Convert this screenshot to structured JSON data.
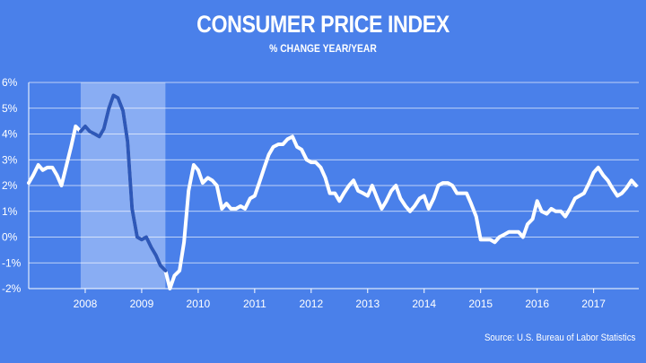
{
  "colors": {
    "background": "#4a80ea",
    "line": "#ffffff",
    "line_in_recession": "#2e58b8",
    "recession_band": "#9fbcf6",
    "grid": "#ffffff"
  },
  "chart_data": {
    "type": "line",
    "title": "CONSUMER PRICE INDEX",
    "subtitle": "% CHANGE YEAR/YEAR",
    "source": "Source: U.S. Bureau of Labor Statistics",
    "xlabel": "",
    "ylabel": "",
    "xlim": [
      2007.0,
      2017.8
    ],
    "ylim": [
      -2,
      6
    ],
    "y_ticks": [
      {
        "value": 6,
        "label": "6%"
      },
      {
        "value": 5,
        "label": "5%"
      },
      {
        "value": 4,
        "label": "4%"
      },
      {
        "value": 3,
        "label": "3%"
      },
      {
        "value": 2,
        "label": "2%"
      },
      {
        "value": 1,
        "label": "1%"
      },
      {
        "value": 0,
        "label": "0%"
      },
      {
        "value": -1,
        "label": "-1%"
      },
      {
        "value": -2,
        "label": "-2%"
      }
    ],
    "x_ticks": [
      {
        "value": 2008,
        "label": "2008"
      },
      {
        "value": 2009,
        "label": "2009"
      },
      {
        "value": 2010,
        "label": "2010"
      },
      {
        "value": 2011,
        "label": "2011"
      },
      {
        "value": 2012,
        "label": "2012"
      },
      {
        "value": 2013,
        "label": "2013"
      },
      {
        "value": 2014,
        "label": "2014"
      },
      {
        "value": 2015,
        "label": "2015"
      },
      {
        "value": 2016,
        "label": "2016"
      },
      {
        "value": 2017,
        "label": "2017"
      }
    ],
    "recession": {
      "start": 2007.92,
      "end": 2009.42
    },
    "series": [
      {
        "name": "CPI % change year/year",
        "points": [
          [
            2007.0,
            2.1
          ],
          [
            2007.08,
            2.4
          ],
          [
            2007.17,
            2.8
          ],
          [
            2007.25,
            2.6
          ],
          [
            2007.33,
            2.7
          ],
          [
            2007.42,
            2.7
          ],
          [
            2007.5,
            2.4
          ],
          [
            2007.58,
            2.0
          ],
          [
            2007.67,
            2.8
          ],
          [
            2007.75,
            3.5
          ],
          [
            2007.83,
            4.3
          ],
          [
            2007.92,
            4.1
          ],
          [
            2008.0,
            4.3
          ],
          [
            2008.08,
            4.1
          ],
          [
            2008.17,
            4.0
          ],
          [
            2008.25,
            3.9
          ],
          [
            2008.33,
            4.2
          ],
          [
            2008.42,
            5.0
          ],
          [
            2008.5,
            5.5
          ],
          [
            2008.58,
            5.4
          ],
          [
            2008.67,
            4.9
          ],
          [
            2008.75,
            3.7
          ],
          [
            2008.83,
            1.1
          ],
          [
            2008.92,
            0.0
          ],
          [
            2009.0,
            -0.1
          ],
          [
            2009.08,
            0.0
          ],
          [
            2009.17,
            -0.4
          ],
          [
            2009.25,
            -0.7
          ],
          [
            2009.33,
            -1.1
          ],
          [
            2009.42,
            -1.3
          ],
          [
            2009.5,
            -2.0
          ],
          [
            2009.58,
            -1.5
          ],
          [
            2009.67,
            -1.3
          ],
          [
            2009.75,
            -0.2
          ],
          [
            2009.83,
            1.8
          ],
          [
            2009.92,
            2.8
          ],
          [
            2010.0,
            2.6
          ],
          [
            2010.08,
            2.1
          ],
          [
            2010.17,
            2.3
          ],
          [
            2010.25,
            2.2
          ],
          [
            2010.33,
            2.0
          ],
          [
            2010.42,
            1.1
          ],
          [
            2010.5,
            1.3
          ],
          [
            2010.58,
            1.1
          ],
          [
            2010.67,
            1.1
          ],
          [
            2010.75,
            1.2
          ],
          [
            2010.83,
            1.1
          ],
          [
            2010.92,
            1.5
          ],
          [
            2011.0,
            1.6
          ],
          [
            2011.08,
            2.1
          ],
          [
            2011.17,
            2.7
          ],
          [
            2011.25,
            3.2
          ],
          [
            2011.33,
            3.5
          ],
          [
            2011.42,
            3.6
          ],
          [
            2011.5,
            3.6
          ],
          [
            2011.58,
            3.8
          ],
          [
            2011.67,
            3.9
          ],
          [
            2011.75,
            3.5
          ],
          [
            2011.83,
            3.4
          ],
          [
            2011.92,
            3.0
          ],
          [
            2012.0,
            2.9
          ],
          [
            2012.08,
            2.9
          ],
          [
            2012.17,
            2.7
          ],
          [
            2012.25,
            2.3
          ],
          [
            2012.33,
            1.7
          ],
          [
            2012.42,
            1.7
          ],
          [
            2012.5,
            1.4
          ],
          [
            2012.58,
            1.7
          ],
          [
            2012.67,
            2.0
          ],
          [
            2012.75,
            2.2
          ],
          [
            2012.83,
            1.8
          ],
          [
            2012.92,
            1.7
          ],
          [
            2013.0,
            1.6
          ],
          [
            2013.08,
            2.0
          ],
          [
            2013.17,
            1.5
          ],
          [
            2013.25,
            1.1
          ],
          [
            2013.33,
            1.4
          ],
          [
            2013.42,
            1.8
          ],
          [
            2013.5,
            2.0
          ],
          [
            2013.58,
            1.5
          ],
          [
            2013.67,
            1.2
          ],
          [
            2013.75,
            1.0
          ],
          [
            2013.83,
            1.2
          ],
          [
            2013.92,
            1.5
          ],
          [
            2014.0,
            1.6
          ],
          [
            2014.08,
            1.1
          ],
          [
            2014.17,
            1.5
          ],
          [
            2014.25,
            2.0
          ],
          [
            2014.33,
            2.1
          ],
          [
            2014.42,
            2.1
          ],
          [
            2014.5,
            2.0
          ],
          [
            2014.58,
            1.7
          ],
          [
            2014.67,
            1.7
          ],
          [
            2014.75,
            1.7
          ],
          [
            2014.83,
            1.3
          ],
          [
            2014.92,
            0.8
          ],
          [
            2015.0,
            -0.1
          ],
          [
            2015.08,
            -0.1
          ],
          [
            2015.17,
            -0.1
          ],
          [
            2015.25,
            -0.2
          ],
          [
            2015.33,
            0.0
          ],
          [
            2015.42,
            0.1
          ],
          [
            2015.5,
            0.2
          ],
          [
            2015.58,
            0.2
          ],
          [
            2015.67,
            0.2
          ],
          [
            2015.75,
            0.0
          ],
          [
            2015.83,
            0.5
          ],
          [
            2015.92,
            0.7
          ],
          [
            2016.0,
            1.4
          ],
          [
            2016.08,
            1.0
          ],
          [
            2016.17,
            0.9
          ],
          [
            2016.25,
            1.1
          ],
          [
            2016.33,
            1.0
          ],
          [
            2016.42,
            1.0
          ],
          [
            2016.5,
            0.8
          ],
          [
            2016.58,
            1.1
          ],
          [
            2016.67,
            1.5
          ],
          [
            2016.75,
            1.6
          ],
          [
            2016.83,
            1.7
          ],
          [
            2016.92,
            2.1
          ],
          [
            2017.0,
            2.5
          ],
          [
            2017.08,
            2.7
          ],
          [
            2017.17,
            2.4
          ],
          [
            2017.25,
            2.2
          ],
          [
            2017.33,
            1.9
          ],
          [
            2017.42,
            1.6
          ],
          [
            2017.5,
            1.7
          ],
          [
            2017.58,
            1.9
          ],
          [
            2017.67,
            2.2
          ],
          [
            2017.75,
            2.0
          ]
        ]
      }
    ]
  }
}
